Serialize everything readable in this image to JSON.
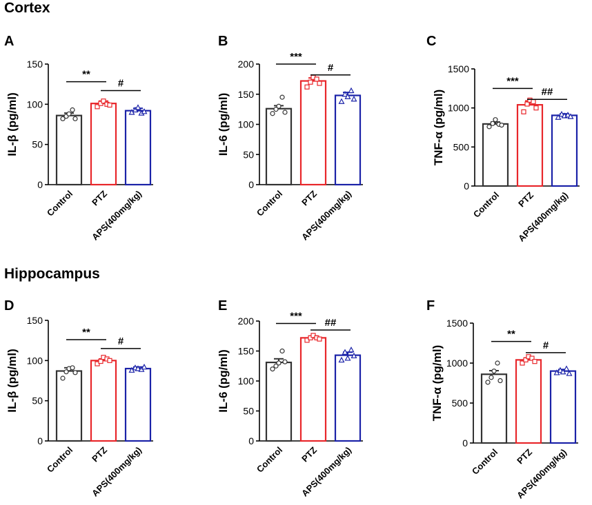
{
  "sections": {
    "top": "Cortex",
    "bottom": "Hippocampus"
  },
  "colors": {
    "control": "#333333",
    "ptz": "#e8262a",
    "aps": "#1a22a8"
  },
  "chart_data": [
    {
      "panel": "A",
      "type": "bar",
      "ylabel": "IL-β (pg/ml)",
      "ylim": [
        0,
        150
      ],
      "yticks": [
        "0",
        "50",
        "100",
        "150"
      ],
      "categories": [
        "Control",
        "PTZ",
        "APS(400mg/kg)"
      ],
      "values": [
        86,
        101,
        92
      ],
      "sem": [
        3,
        3,
        3
      ],
      "points": [
        [
          82,
          85,
          88,
          93,
          82
        ],
        [
          97,
          101,
          104,
          100,
          99
        ],
        [
          90,
          93,
          96,
          89,
          91
        ]
      ],
      "annotations": [
        {
          "label": "**",
          "from": 0,
          "to": 1,
          "y": 128
        },
        {
          "label": "#",
          "from": 1,
          "to": 2,
          "y": 117
        }
      ]
    },
    {
      "panel": "B",
      "type": "bar",
      "ylabel": "IL-6 (pg/ml)",
      "ylim": [
        0,
        200
      ],
      "yticks": [
        "0",
        "50",
        "100",
        "150",
        "200"
      ],
      "categories": [
        "Control",
        "PTZ",
        "APS(400mg/kg)"
      ],
      "values": [
        126,
        172,
        148
      ],
      "sem": [
        5,
        5,
        5
      ],
      "points": [
        [
          118,
          125,
          130,
          145,
          120
        ],
        [
          162,
          170,
          178,
          175,
          168
        ],
        [
          138,
          150,
          146,
          156,
          142
        ]
      ],
      "annotations": [
        {
          "label": "***",
          "from": 0,
          "to": 1,
          "y": 200
        },
        {
          "label": "#",
          "from": 1,
          "to": 2,
          "y": 182
        }
      ]
    },
    {
      "panel": "C",
      "type": "bar",
      "ylabel": "TNF-α (pg/ml)",
      "ylim": [
        0,
        1500
      ],
      "yticks": [
        "0",
        "500",
        "1000",
        "1500"
      ],
      "categories": [
        "Control",
        "PTZ",
        "APS(400mg/kg)"
      ],
      "values": [
        795,
        1040,
        905
      ],
      "sem": [
        25,
        50,
        20
      ],
      "points": [
        [
          760,
          800,
          850,
          790,
          780
        ],
        [
          950,
          1050,
          1100,
          1080,
          1000
        ],
        [
          880,
          920,
          900,
          910,
          890
        ]
      ],
      "annotations": [
        {
          "label": "***",
          "from": 0,
          "to": 1,
          "y": 1250
        },
        {
          "label": "##",
          "from": 1,
          "to": 2,
          "y": 1110
        }
      ]
    },
    {
      "panel": "D",
      "type": "bar",
      "ylabel": "IL-β (pg/ml)",
      "ylim": [
        0,
        150
      ],
      "yticks": [
        "0",
        "50",
        "100",
        "150"
      ],
      "categories": [
        "Control",
        "PTZ",
        "APS(400mg/kg)"
      ],
      "values": [
        87,
        100,
        90
      ],
      "sem": [
        4,
        2,
        2
      ],
      "points": [
        [
          78,
          86,
          90,
          91,
          85
        ],
        [
          96,
          99,
          104,
          102,
          100
        ],
        [
          88,
          91,
          90,
          89,
          92
        ]
      ],
      "annotations": [
        {
          "label": "**",
          "from": 0,
          "to": 1,
          "y": 126
        },
        {
          "label": "#",
          "from": 1,
          "to": 2,
          "y": 115
        }
      ]
    },
    {
      "panel": "E",
      "type": "bar",
      "ylabel": "IL-6 (pg/ml)",
      "ylim": [
        0,
        200
      ],
      "yticks": [
        "0",
        "50",
        "100",
        "150",
        "200"
      ],
      "categories": [
        "Control",
        "PTZ",
        "APS(400mg/kg)"
      ],
      "values": [
        131,
        172,
        143
      ],
      "sem": [
        6,
        3,
        5
      ],
      "points": [
        [
          120,
          125,
          130,
          150,
          132
        ],
        [
          168,
          172,
          176,
          172,
          170
        ],
        [
          135,
          148,
          138,
          152,
          142
        ]
      ],
      "annotations": [
        {
          "label": "***",
          "from": 0,
          "to": 1,
          "y": 196
        },
        {
          "label": "##",
          "from": 1,
          "to": 2,
          "y": 185
        }
      ]
    },
    {
      "panel": "F",
      "type": "bar",
      "ylabel": "TNF-α (pg/ml)",
      "ylim": [
        0,
        1500
      ],
      "yticks": [
        "0",
        "500",
        "1000",
        "1500"
      ],
      "categories": [
        "Control",
        "PTZ",
        "APS(400mg/kg)"
      ],
      "values": [
        860,
        1040,
        900
      ],
      "sem": [
        45,
        25,
        20
      ],
      "points": [
        [
          760,
          820,
          900,
          1000,
          780
        ],
        [
          1000,
          1040,
          1080,
          1060,
          1020
        ],
        [
          880,
          910,
          890,
          930,
          870
        ]
      ],
      "annotations": [
        {
          "label": "**",
          "from": 0,
          "to": 1,
          "y": 1270
        },
        {
          "label": "#",
          "from": 1,
          "to": 2,
          "y": 1130
        }
      ]
    }
  ]
}
